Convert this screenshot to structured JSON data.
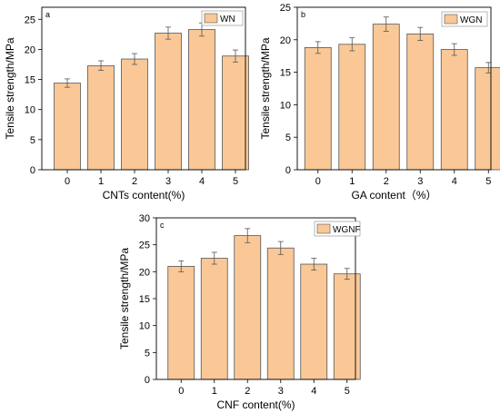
{
  "chart_data": [
    {
      "type": "bar",
      "panel": "a",
      "categories": [
        "0",
        "1",
        "2",
        "3",
        "4",
        "5"
      ],
      "series": [
        {
          "name": "WN",
          "values": [
            14.4,
            17.3,
            18.4,
            22.7,
            23.3,
            18.9
          ],
          "errors": [
            0.7,
            0.8,
            0.9,
            1.0,
            1.1,
            1.0
          ]
        }
      ],
      "xlabel": "CNTs content(%)",
      "ylabel": "Tensile strength/MPa",
      "ylim": [
        0,
        27
      ],
      "yticks": [
        0,
        5,
        10,
        15,
        20,
        25
      ],
      "grid": false,
      "legend": "top-right",
      "bar_color": "#f9c896",
      "bar_edge_color": "#555555"
    },
    {
      "type": "bar",
      "panel": "b",
      "categories": [
        "0",
        "1",
        "2",
        "3",
        "4",
        "5"
      ],
      "series": [
        {
          "name": "WGN",
          "values": [
            18.8,
            19.3,
            22.4,
            20.9,
            18.5,
            15.7
          ],
          "errors": [
            0.9,
            1.0,
            1.1,
            1.0,
            0.9,
            0.8
          ]
        }
      ],
      "xlabel": "GA content（%）",
      "ylabel": "Tensile strength/MPa",
      "ylim": [
        0,
        25
      ],
      "yticks": [
        0,
        5,
        10,
        15,
        20,
        25
      ],
      "grid": false,
      "legend": "top-right",
      "bar_color": "#f9c896",
      "bar_edge_color": "#555555"
    },
    {
      "type": "bar",
      "panel": "c",
      "categories": [
        "0",
        "1",
        "2",
        "3",
        "4",
        "5"
      ],
      "series": [
        {
          "name": "WGNF",
          "values": [
            21.0,
            22.5,
            26.7,
            24.4,
            21.4,
            19.6
          ],
          "errors": [
            1.0,
            1.1,
            1.3,
            1.2,
            1.1,
            1.0
          ]
        }
      ],
      "xlabel": "CNF content(%)",
      "ylabel": "Tensile strength/MPa",
      "ylim": [
        0,
        30
      ],
      "yticks": [
        0,
        5,
        10,
        15,
        20,
        25,
        30
      ],
      "grid": false,
      "legend": "top-left",
      "bar_color": "#f9c896",
      "bar_edge_color": "#555555"
    }
  ]
}
